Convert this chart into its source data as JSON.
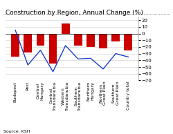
{
  "title": "Construction by Region, Annual Change (%)",
  "categories": [
    "Budapest",
    "Pest",
    "Central\nHungary",
    "Central\nTransdanubia",
    "Western\nTransdanubia",
    "Southern\nTransdanubia",
    "Northern\nHungary",
    "Northern\nGreat Plain",
    "Southern\nGreat Plain",
    "Country total"
  ],
  "bar_values": [
    -35,
    -28,
    -18,
    -45,
    15,
    -18,
    -20,
    -22,
    -12,
    -25
  ],
  "line_values": [
    5,
    -47,
    -25,
    -57,
    -18,
    -38,
    -37,
    -53,
    -30,
    -35
  ],
  "bar_color": "#cc0000",
  "line_color": "#1a3fcc",
  "ylim": [
    -70,
    25
  ],
  "yticks": [
    20,
    10,
    0,
    -10,
    -20,
    -30,
    -40,
    -50,
    -60,
    -70
  ],
  "background_color": "#ffffff",
  "source_text": "Source: KSH",
  "title_fontsize": 6.5,
  "tick_fontsize": 5.0,
  "label_fontsize": 4.5
}
